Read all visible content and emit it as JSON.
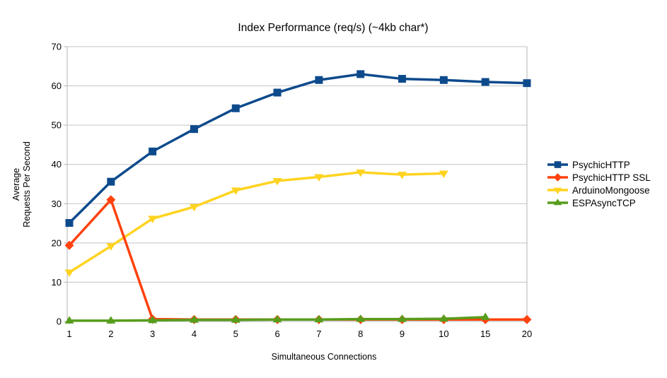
{
  "chart_data": {
    "type": "line",
    "title": "Index Performance (req/s) (~4kb char*)",
    "xlabel": "Simultaneous Connections",
    "ylabel": "Average Requests Per Second",
    "ylabel_lines": [
      "Average",
      "Requests Per Second"
    ],
    "categories": [
      "1",
      "2",
      "3",
      "4",
      "5",
      "6",
      "7",
      "8",
      "9",
      "10",
      "15",
      "20"
    ],
    "yticks": [
      0,
      10,
      20,
      30,
      40,
      50,
      60,
      70
    ],
    "ylim": [
      0,
      70
    ],
    "grid": "horizontal",
    "legend_position": "right",
    "series": [
      {
        "name": "PsychicHTTP",
        "color": "#0d4a8c",
        "marker": "square",
        "values": [
          25.1,
          35.6,
          43.3,
          49.0,
          54.3,
          58.3,
          61.5,
          63.0,
          61.8,
          61.5,
          61.0,
          60.7
        ]
      },
      {
        "name": "PsychicHTTP SSL",
        "color": "#ff420e",
        "marker": "diamond",
        "values": [
          19.4,
          31.0,
          0.6,
          0.5,
          0.5,
          0.5,
          0.5,
          0.5,
          0.5,
          0.5,
          0.5,
          0.5
        ]
      },
      {
        "name": "ArduinoMongoose",
        "color": "#ffd320",
        "marker": "triangle-down",
        "values": [
          12.5,
          19.2,
          26.2,
          29.2,
          33.4,
          35.8,
          36.8,
          38.0,
          37.4,
          37.7,
          null,
          null
        ]
      },
      {
        "name": "ESPAsyncTCP",
        "color": "#579d1c",
        "marker": "triangle-up",
        "values": [
          0.2,
          0.2,
          0.3,
          0.4,
          0.4,
          0.5,
          0.5,
          0.6,
          0.6,
          0.7,
          1.1,
          null
        ]
      }
    ]
  }
}
